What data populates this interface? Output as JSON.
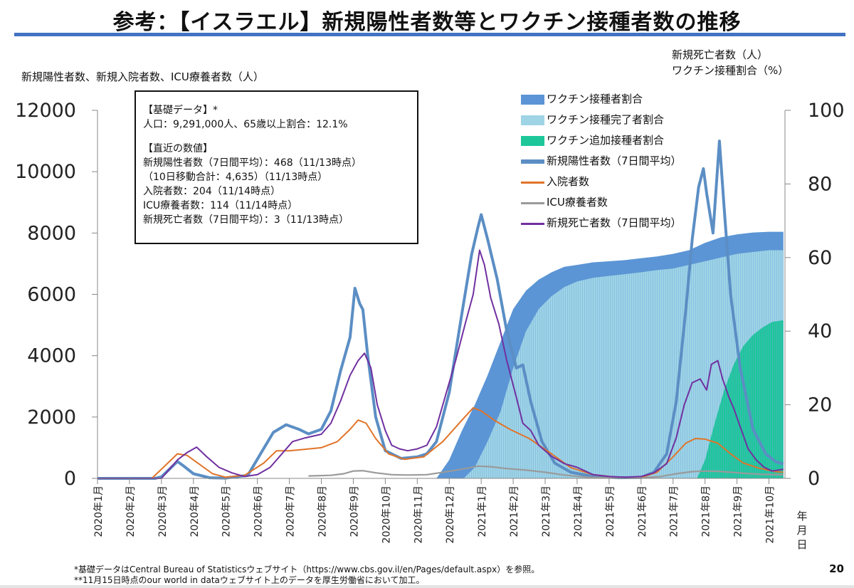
{
  "title": "参考：【イスラエル】新規陽性者数等とワクチン接種者数の推移",
  "left_axis_title": "新規陽性者数、新規入院者数、ICU療養者数（人）",
  "right_axis_title": [
    "新規死亡者数（人）",
    "ワクチン接種割合（%）"
  ],
  "infobox": {
    "head1": "【基礎データ】*",
    "line1": "人口：9,291,000人、65歳以上割合：12.1%",
    "head2": "【直近の数値】",
    "line2": "新規陽性者数（7日間平均）：468（11/13時点）",
    "line3": "（10日移動合計：4,635）（11/13時点）",
    "line4": "入院者数：204（11/14時点）",
    "line5": "ICU療養者数：114（11/14時点）",
    "line6": "新規死亡者数（7日間平均）：3（11/13時点）"
  },
  "date_axis_unit": [
    "年",
    "月",
    "日"
  ],
  "footnotes": [
    "*基礎データはCentral Bureau of Statisticsウェブサイト（https://www.cbs.gov.il/en/Pages/default.aspx）を参照。",
    "**11月15日時点のour world in dataウェブサイト上のデータを厚生労働省において加工。"
  ],
  "page_number": "20",
  "colors": {
    "vaccinated": "#5b95d5",
    "fully_vaccinated": "#9ed4e6",
    "booster": "#1dc79a",
    "cases": "#5b8ec4",
    "hospitalized": "#e0742a",
    "icu": "#9a9a9a",
    "deaths": "#7030a0"
  },
  "chart_data": {
    "type": "line",
    "x_unit": "month-index (0 = 2020年1月1日)",
    "x_ticks": [
      "2020年1月",
      "2020年2月",
      "2020年3月",
      "2020年4月",
      "2020年5月",
      "2020年6月",
      "2020年7月",
      "2020年8月",
      "2020年9月",
      "2020年10月",
      "2020年11月",
      "2020年12月",
      "2021年1月",
      "2021年2月",
      "2021年3月",
      "2021年4月",
      "2021年5月",
      "2021年6月",
      "2021年7月",
      "2021年8月",
      "2021年9月",
      "2021年10月"
    ],
    "x_range": [
      0,
      21.5
    ],
    "y_left_ticks": [
      "0",
      "2000",
      "4000",
      "6000",
      "8000",
      "10000",
      "12000"
    ],
    "y_left_range": [
      0,
      12000
    ],
    "y_right_ticks": [
      "0",
      "20",
      "40",
      "60",
      "80",
      "100"
    ],
    "y_right_range": [
      0,
      100
    ],
    "legend_position": "top-right",
    "series": [
      {
        "name": "ワクチン接種者割合",
        "kind": "area",
        "axis": "right",
        "color": "#5b95d5",
        "points": [
          [
            10.6,
            0
          ],
          [
            11.0,
            5
          ],
          [
            11.4,
            13
          ],
          [
            11.8,
            20
          ],
          [
            12.2,
            28
          ],
          [
            12.6,
            37
          ],
          [
            13.0,
            46
          ],
          [
            13.4,
            51
          ],
          [
            13.8,
            54
          ],
          [
            14.2,
            56
          ],
          [
            14.6,
            57.5
          ],
          [
            15.0,
            58
          ],
          [
            15.5,
            58.7
          ],
          [
            16.0,
            59
          ],
          [
            16.5,
            59.3
          ],
          [
            17.0,
            59.8
          ],
          [
            17.5,
            60.3
          ],
          [
            18.0,
            61
          ],
          [
            18.5,
            62
          ],
          [
            19.0,
            64
          ],
          [
            19.5,
            65.5
          ],
          [
            20.0,
            66.3
          ],
          [
            20.5,
            66.8
          ],
          [
            21.0,
            67
          ],
          [
            21.45,
            67
          ]
        ]
      },
      {
        "name": "ワクチン接種完了者割合",
        "kind": "area",
        "axis": "right",
        "color": "#9ed4e6",
        "points": [
          [
            11.45,
            0
          ],
          [
            11.8,
            3
          ],
          [
            12.2,
            10
          ],
          [
            12.6,
            18
          ],
          [
            13.0,
            30
          ],
          [
            13.4,
            40
          ],
          [
            13.8,
            46
          ],
          [
            14.2,
            49.5
          ],
          [
            14.6,
            52
          ],
          [
            15.0,
            53.5
          ],
          [
            15.5,
            54.5
          ],
          [
            16.0,
            55
          ],
          [
            16.5,
            55.5
          ],
          [
            17.0,
            56
          ],
          [
            17.5,
            56.6
          ],
          [
            18.0,
            57
          ],
          [
            18.5,
            58
          ],
          [
            19.0,
            59
          ],
          [
            19.5,
            60
          ],
          [
            20.0,
            61
          ],
          [
            20.5,
            61.5
          ],
          [
            21.0,
            62
          ],
          [
            21.45,
            62
          ]
        ]
      },
      {
        "name": "ワクチン追加接種者割合",
        "kind": "area",
        "axis": "right",
        "color": "#1dc79a",
        "points": [
          [
            18.75,
            0
          ],
          [
            19.0,
            5
          ],
          [
            19.3,
            15
          ],
          [
            19.6,
            24
          ],
          [
            19.9,
            31
          ],
          [
            20.2,
            36
          ],
          [
            20.5,
            39
          ],
          [
            20.8,
            41
          ],
          [
            21.1,
            42.5
          ],
          [
            21.45,
            43
          ]
        ]
      },
      {
        "name": "新規陽性者数（7日間平均）",
        "kind": "line",
        "axis": "left",
        "color": "#5b8ec4",
        "points": [
          [
            0,
            0
          ],
          [
            1.8,
            0
          ],
          [
            2.0,
            50
          ],
          [
            2.3,
            350
          ],
          [
            2.5,
            550
          ],
          [
            2.7,
            400
          ],
          [
            3.0,
            150
          ],
          [
            3.5,
            20
          ],
          [
            4.0,
            10
          ],
          [
            4.7,
            100
          ],
          [
            5.1,
            800
          ],
          [
            5.5,
            1500
          ],
          [
            5.9,
            1750
          ],
          [
            6.3,
            1600
          ],
          [
            6.6,
            1450
          ],
          [
            7.0,
            1600
          ],
          [
            7.3,
            2200
          ],
          [
            7.6,
            3500
          ],
          [
            7.9,
            4600
          ],
          [
            8.05,
            6200
          ],
          [
            8.2,
            5700
          ],
          [
            8.3,
            5500
          ],
          [
            8.45,
            4000
          ],
          [
            8.7,
            2000
          ],
          [
            9.0,
            900
          ],
          [
            9.5,
            650
          ],
          [
            10.0,
            700
          ],
          [
            10.3,
            800
          ],
          [
            10.6,
            1200
          ],
          [
            11.0,
            2800
          ],
          [
            11.4,
            5400
          ],
          [
            11.7,
            7300
          ],
          [
            11.9,
            8200
          ],
          [
            12.0,
            8600
          ],
          [
            12.2,
            7800
          ],
          [
            12.5,
            6500
          ],
          [
            12.8,
            4800
          ],
          [
            13.1,
            3600
          ],
          [
            13.3,
            3700
          ],
          [
            13.55,
            2500
          ],
          [
            13.9,
            1200
          ],
          [
            14.3,
            500
          ],
          [
            14.8,
            200
          ],
          [
            15.5,
            60
          ],
          [
            16.3,
            20
          ],
          [
            17.0,
            30
          ],
          [
            17.4,
            200
          ],
          [
            17.8,
            800
          ],
          [
            18.1,
            2500
          ],
          [
            18.4,
            5500
          ],
          [
            18.6,
            7800
          ],
          [
            18.8,
            9500
          ],
          [
            18.95,
            10100
          ],
          [
            19.05,
            9300
          ],
          [
            19.25,
            8000
          ],
          [
            19.45,
            11000
          ],
          [
            19.6,
            8800
          ],
          [
            19.8,
            6000
          ],
          [
            20.1,
            3600
          ],
          [
            20.5,
            1600
          ],
          [
            20.9,
            800
          ],
          [
            21.2,
            550
          ],
          [
            21.45,
            470
          ]
        ]
      },
      {
        "name": "入院者数",
        "kind": "line",
        "axis": "left",
        "color": "#e0742a",
        "points": [
          [
            1.7,
            0
          ],
          [
            2.2,
            500
          ],
          [
            2.5,
            800
          ],
          [
            2.8,
            750
          ],
          [
            3.2,
            450
          ],
          [
            3.6,
            150
          ],
          [
            4.0,
            40
          ],
          [
            4.6,
            100
          ],
          [
            5.2,
            500
          ],
          [
            5.6,
            900
          ],
          [
            6.0,
            900
          ],
          [
            6.5,
            950
          ],
          [
            7.0,
            1000
          ],
          [
            7.5,
            1200
          ],
          [
            7.9,
            1600
          ],
          [
            8.15,
            1900
          ],
          [
            8.4,
            1800
          ],
          [
            8.7,
            1300
          ],
          [
            9.1,
            800
          ],
          [
            9.6,
            620
          ],
          [
            10.2,
            700
          ],
          [
            10.8,
            1200
          ],
          [
            11.4,
            1900
          ],
          [
            11.75,
            2300
          ],
          [
            12.0,
            2200
          ],
          [
            12.4,
            1900
          ],
          [
            12.9,
            1600
          ],
          [
            13.5,
            1300
          ],
          [
            14.2,
            800
          ],
          [
            14.8,
            350
          ],
          [
            15.5,
            120
          ],
          [
            16.3,
            30
          ],
          [
            17.0,
            30
          ],
          [
            17.5,
            200
          ],
          [
            18.0,
            700
          ],
          [
            18.4,
            1150
          ],
          [
            18.7,
            1300
          ],
          [
            19.0,
            1280
          ],
          [
            19.4,
            1150
          ],
          [
            19.8,
            800
          ],
          [
            20.2,
            500
          ],
          [
            20.7,
            330
          ],
          [
            21.2,
            220
          ],
          [
            21.45,
            200
          ]
        ]
      },
      {
        "name": "ICU療養者数",
        "kind": "line",
        "axis": "left",
        "color": "#9a9a9a",
        "points": [
          [
            6.6,
            80
          ],
          [
            7.3,
            100
          ],
          [
            7.7,
            150
          ],
          [
            8.0,
            240
          ],
          [
            8.3,
            250
          ],
          [
            8.7,
            180
          ],
          [
            9.2,
            120
          ],
          [
            9.7,
            110
          ],
          [
            10.3,
            120
          ],
          [
            10.8,
            200
          ],
          [
            11.4,
            300
          ],
          [
            11.9,
            400
          ],
          [
            12.3,
            380
          ],
          [
            12.8,
            320
          ],
          [
            13.4,
            270
          ],
          [
            14.0,
            200
          ],
          [
            14.6,
            110
          ],
          [
            15.3,
            40
          ],
          [
            16.0,
            15
          ],
          [
            17.0,
            10
          ],
          [
            17.6,
            60
          ],
          [
            18.1,
            150
          ],
          [
            18.6,
            220
          ],
          [
            19.0,
            240
          ],
          [
            19.4,
            230
          ],
          [
            19.8,
            200
          ],
          [
            20.3,
            160
          ],
          [
            20.8,
            130
          ],
          [
            21.45,
            115
          ]
        ]
      },
      {
        "name": "新規死亡者数（7日間平均）",
        "kind": "line",
        "axis": "right",
        "color": "#7030a0",
        "points": [
          [
            0,
            0
          ],
          [
            2.0,
            0
          ],
          [
            2.5,
            5
          ],
          [
            2.8,
            7
          ],
          [
            3.1,
            8.5
          ],
          [
            3.4,
            6
          ],
          [
            3.8,
            3
          ],
          [
            4.2,
            1.5
          ],
          [
            4.6,
            0.5
          ],
          [
            5.0,
            1
          ],
          [
            5.4,
            3
          ],
          [
            5.8,
            7
          ],
          [
            6.1,
            10
          ],
          [
            6.5,
            11
          ],
          [
            7.0,
            12
          ],
          [
            7.3,
            15
          ],
          [
            7.6,
            21
          ],
          [
            7.9,
            28
          ],
          [
            8.15,
            32
          ],
          [
            8.35,
            34
          ],
          [
            8.55,
            30
          ],
          [
            8.75,
            20
          ],
          [
            9.0,
            13
          ],
          [
            9.2,
            9
          ],
          [
            9.45,
            8
          ],
          [
            9.7,
            7.5
          ],
          [
            10.0,
            8
          ],
          [
            10.3,
            9
          ],
          [
            10.6,
            14
          ],
          [
            10.9,
            23
          ],
          [
            11.2,
            32
          ],
          [
            11.5,
            42
          ],
          [
            11.75,
            50
          ],
          [
            11.95,
            62
          ],
          [
            12.1,
            58
          ],
          [
            12.3,
            49
          ],
          [
            12.55,
            42
          ],
          [
            12.8,
            32
          ],
          [
            13.1,
            22
          ],
          [
            13.3,
            15
          ],
          [
            13.55,
            13
          ],
          [
            13.8,
            9
          ],
          [
            14.2,
            6
          ],
          [
            14.6,
            4
          ],
          [
            15.0,
            3
          ],
          [
            15.5,
            1
          ],
          [
            16.0,
            0.5
          ],
          [
            16.5,
            0.3
          ],
          [
            17.0,
            0.5
          ],
          [
            17.4,
            1.5
          ],
          [
            17.8,
            4
          ],
          [
            18.1,
            11
          ],
          [
            18.35,
            20
          ],
          [
            18.6,
            26
          ],
          [
            18.85,
            27
          ],
          [
            19.05,
            24
          ],
          [
            19.2,
            31
          ],
          [
            19.4,
            32
          ],
          [
            19.55,
            27
          ],
          [
            19.75,
            22
          ],
          [
            19.9,
            19
          ],
          [
            20.1,
            14
          ],
          [
            20.35,
            8
          ],
          [
            20.6,
            5
          ],
          [
            20.85,
            3
          ],
          [
            21.1,
            2
          ],
          [
            21.45,
            2.5
          ]
        ]
      }
    ]
  }
}
